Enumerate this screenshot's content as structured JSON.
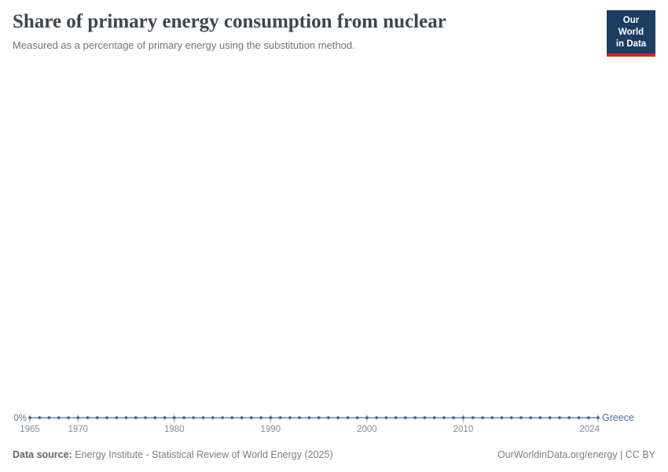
{
  "header": {
    "title": "Share of primary energy consumption from nuclear",
    "subtitle": "Measured as a percentage of primary energy using the substitution method."
  },
  "logo": {
    "line1": "Our World",
    "line2": "in Data",
    "background_color": "#1d3d63",
    "bar_color": "#cc2a24"
  },
  "footer": {
    "datasource_label": "Data source:",
    "datasource_text": "Energy Institute - Statistical Review of World Energy (2025)",
    "credit": "OurWorldinData.org/energy | CC BY"
  },
  "chart_data": {
    "type": "line",
    "title": "Share of primary energy consumption from nuclear",
    "subtitle": "Measured as a percentage of primary energy using the substitution method.",
    "xlabel": "",
    "ylabel": "",
    "xlim": [
      1965,
      2024
    ],
    "grid": "none",
    "legend": "series-end-label",
    "x": [
      1965,
      1966,
      1967,
      1968,
      1969,
      1970,
      1971,
      1972,
      1973,
      1974,
      1975,
      1976,
      1977,
      1978,
      1979,
      1980,
      1981,
      1982,
      1983,
      1984,
      1985,
      1986,
      1987,
      1988,
      1989,
      1990,
      1991,
      1992,
      1993,
      1994,
      1995,
      1996,
      1997,
      1998,
      1999,
      2000,
      2001,
      2002,
      2003,
      2004,
      2005,
      2006,
      2007,
      2008,
      2009,
      2010,
      2011,
      2012,
      2013,
      2014,
      2015,
      2016,
      2017,
      2018,
      2019,
      2020,
      2021,
      2022,
      2023,
      2024
    ],
    "series": [
      {
        "name": "Greece",
        "color": "#4a6fae",
        "marker_color": "#3f639e",
        "values": [
          0,
          0,
          0,
          0,
          0,
          0,
          0,
          0,
          0,
          0,
          0,
          0,
          0,
          0,
          0,
          0,
          0,
          0,
          0,
          0,
          0,
          0,
          0,
          0,
          0,
          0,
          0,
          0,
          0,
          0,
          0,
          0,
          0,
          0,
          0,
          0,
          0,
          0,
          0,
          0,
          0,
          0,
          0,
          0,
          0,
          0,
          0,
          0,
          0,
          0,
          0,
          0,
          0,
          0,
          0,
          0,
          0,
          0,
          0,
          0
        ]
      }
    ],
    "x_ticks": [
      1965,
      1970,
      1980,
      1990,
      2000,
      2010,
      2024
    ],
    "y_ticks": [
      {
        "value": 0,
        "label": "0%"
      }
    ],
    "axis_label_color": "#858c93",
    "tick_color": "#9aa3ab"
  }
}
